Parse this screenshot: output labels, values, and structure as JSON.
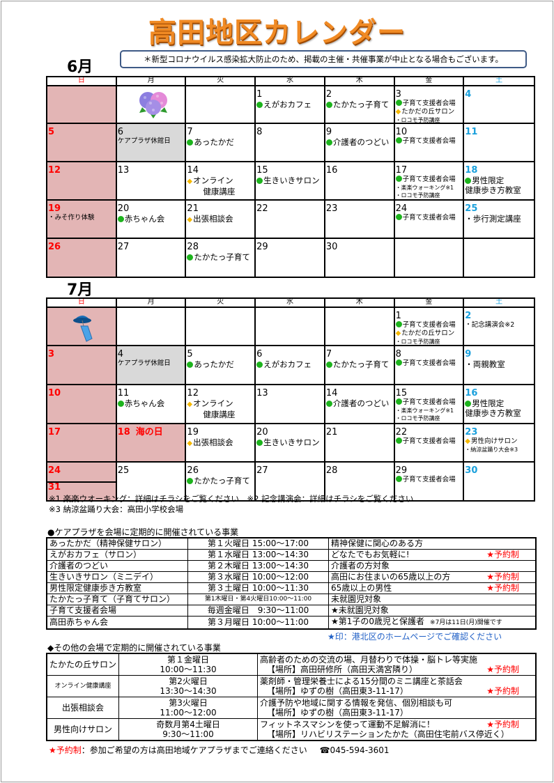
{
  "title": "高田地区カレンダー",
  "notice": "＊新型コロナウイルス感染拡大防止のため、掲載の主催・共催事業が中止となる場合もございます。",
  "weekdays": [
    "日",
    "月",
    "火",
    "水",
    "木",
    "金",
    "土"
  ],
  "colors": {
    "sunday": "#ff0000",
    "saturday": "#1aa0dc",
    "sunday_bg": "#e3b5b5",
    "closed_bg": "#d9d9d9",
    "green_mark": "#1db31d",
    "diamond_mark": "#f5b800",
    "title": "#f08a24"
  },
  "calendars": [
    {
      "month": "6月",
      "weeks": [
        [
          {
            "type": "sun",
            "icon": "hydrangea"
          },
          {
            "icon": "hydrangea-icon"
          },
          {},
          {
            "day": "1",
            "items": [
              {
                "m": "green",
                "t": "えがおカフェ"
              }
            ]
          },
          {
            "day": "2",
            "items": [
              {
                "m": "green",
                "t": "たかたっ子育て"
              }
            ]
          },
          {
            "day": "3",
            "items": [
              {
                "m": "green",
                "t": "子育て支援者会場",
                "s": "sm"
              },
              {
                "m": "diamond",
                "t": "たかだの丘サロン",
                "s": "sm"
              },
              {
                "m": "dot",
                "t": "・ロコモ予防講座",
                "s": "xs"
              }
            ]
          },
          {
            "day": "4",
            "type": "sat"
          }
        ],
        [
          {
            "day": "5",
            "type": "sun"
          },
          {
            "day": "6",
            "type": "closed",
            "items": [
              {
                "t": "ケアプラザ休館日",
                "s": "sm"
              }
            ]
          },
          {
            "day": "7",
            "items": [
              {
                "m": "green",
                "t": "あったかだ"
              }
            ]
          },
          {
            "day": "8"
          },
          {
            "day": "9",
            "items": [
              {
                "m": "green",
                "t": "介護者のつどい"
              }
            ]
          },
          {
            "day": "10",
            "items": [
              {
                "m": "green",
                "t": "子育て支援者会場",
                "s": "sm"
              }
            ]
          },
          {
            "day": "11",
            "type": "sat"
          }
        ],
        [
          {
            "day": "12",
            "type": "sun"
          },
          {
            "day": "13"
          },
          {
            "day": "14",
            "items": [
              {
                "m": "diamond",
                "t": "オンライン"
              },
              {
                "t": "　　健康講座"
              }
            ]
          },
          {
            "day": "15",
            "items": [
              {
                "m": "green",
                "t": "生きいきサロン"
              }
            ]
          },
          {
            "day": "16"
          },
          {
            "day": "17",
            "items": [
              {
                "m": "green",
                "t": "子育て支援者会場",
                "s": "sm"
              },
              {
                "t": "・楽楽ウォーキング※1",
                "s": "xs"
              },
              {
                "t": "・ロコモ予防講座",
                "s": "xs"
              }
            ]
          },
          {
            "day": "18",
            "type": "sat",
            "items": [
              {
                "m": "green",
                "t": "男性限定"
              },
              {
                "t": " 健康歩き方教室"
              }
            ]
          }
        ],
        [
          {
            "day": "19",
            "type": "sun",
            "items": [
              {
                "t": "・みそ作り体験",
                "s": "sm"
              }
            ]
          },
          {
            "day": "20",
            "items": [
              {
                "m": "green",
                "t": "赤ちゃん会"
              }
            ]
          },
          {
            "day": "21",
            "items": [
              {
                "m": "diamond",
                "t": "出張相談会"
              }
            ]
          },
          {
            "day": "22"
          },
          {
            "day": "23"
          },
          {
            "day": "24",
            "items": [
              {
                "m": "green",
                "t": "子育て支援者会場",
                "s": "sm"
              }
            ]
          },
          {
            "day": "25",
            "type": "sat",
            "items": [
              {
                "t": "・歩行測定講座"
              }
            ]
          }
        ],
        [
          {
            "day": "26",
            "type": "sun"
          },
          {
            "day": "27"
          },
          {
            "day": "28",
            "items": [
              {
                "m": "green",
                "t": "たかたっ子育て"
              }
            ]
          },
          {
            "day": "29"
          },
          {
            "day": "30"
          },
          {},
          {}
        ]
      ]
    },
    {
      "month": "7月",
      "weeks": [
        [
          {
            "type": "sun",
            "icon": "wind-chime-icon"
          },
          {},
          {},
          {},
          {},
          {
            "day": "1",
            "items": [
              {
                "m": "green",
                "t": "子育て支援者会場",
                "s": "sm"
              },
              {
                "m": "diamond",
                "t": "たかだの丘サロン",
                "s": "sm"
              },
              {
                "t": "・ロコモ予防講座",
                "s": "xs"
              }
            ]
          },
          {
            "day": "2",
            "type": "sat",
            "items": [
              {
                "t": "・記念講演会※2",
                "s": "sm"
              }
            ]
          }
        ],
        [
          {
            "day": "3",
            "type": "sun"
          },
          {
            "day": "4",
            "type": "closed",
            "items": [
              {
                "t": "ケアプラザ休館日",
                "s": "sm"
              }
            ]
          },
          {
            "day": "5",
            "items": [
              {
                "m": "green",
                "t": "あったかだ"
              }
            ]
          },
          {
            "day": "6",
            "items": [
              {
                "m": "green",
                "t": "えがおカフェ"
              }
            ]
          },
          {
            "day": "7",
            "items": [
              {
                "m": "green",
                "t": "たかたっ子育て"
              }
            ]
          },
          {
            "day": "8",
            "items": [
              {
                "m": "green",
                "t": "子育て支援者会場",
                "s": "sm"
              }
            ]
          },
          {
            "day": "9",
            "type": "sat",
            "items": [
              {
                "t": "・両親教室"
              }
            ]
          }
        ],
        [
          {
            "day": "10",
            "type": "sun"
          },
          {
            "day": "11",
            "items": [
              {
                "m": "green",
                "t": "赤ちゃん会"
              }
            ]
          },
          {
            "day": "12",
            "items": [
              {
                "m": "diamond",
                "t": "オンライン"
              },
              {
                "t": "　　健康講座"
              }
            ]
          },
          {
            "day": "13"
          },
          {
            "day": "14",
            "items": [
              {
                "m": "green",
                "t": "介護者のつどい"
              }
            ]
          },
          {
            "day": "15",
            "items": [
              {
                "m": "green",
                "t": "子育て支援者会場",
                "s": "sm"
              },
              {
                "t": "・楽楽ウォーキング※1",
                "s": "xs"
              },
              {
                "t": "・ロコモ予防講座",
                "s": "xs"
              }
            ]
          },
          {
            "day": "16",
            "type": "sat",
            "items": [
              {
                "m": "green",
                "t": "男性限定"
              },
              {
                "t": " 健康歩き方教室"
              }
            ]
          }
        ],
        [
          {
            "day": "17",
            "type": "sun"
          },
          {
            "day": "18",
            "type": "sun hol",
            "holiday": "海の日"
          },
          {
            "day": "19",
            "items": [
              {
                "m": "diamond",
                "t": "出張相談会"
              }
            ]
          },
          {
            "day": "20",
            "items": [
              {
                "m": "green",
                "t": "生きいきサロン"
              }
            ]
          },
          {
            "day": "21"
          },
          {
            "day": "22",
            "items": [
              {
                "m": "green",
                "t": "子育て支援者会場",
                "s": "sm"
              }
            ]
          },
          {
            "day": "23",
            "type": "sat",
            "items": [
              {
                "m": "diamond",
                "t": "男性向けサロン",
                "s": "sm"
              },
              {
                "t": "・納涼盆踊り大会※3",
                "s": "xs"
              }
            ]
          }
        ],
        [
          {
            "day": "24",
            "type": "sun",
            "split": "31"
          },
          {
            "day": "25"
          },
          {
            "day": "26",
            "items": [
              {
                "m": "green",
                "t": "たかたっ子育て"
              }
            ]
          },
          {
            "day": "27"
          },
          {
            "day": "28"
          },
          {
            "day": "29",
            "items": [
              {
                "m": "green",
                "t": "子育て支援者会場",
                "s": "sm"
              }
            ]
          },
          {
            "day": "30",
            "type": "sat"
          }
        ]
      ]
    }
  ],
  "footnotes": [
    "※1 楽楽ウオーキング：詳細はチラシをご覧ください　※2 記念講演会：詳細はチラシをご覧ください",
    "※3 納涼盆踊り大会：高田小学校会場"
  ],
  "careplaza": {
    "heading": "●ケアプラザを会場に定期的に開催されている事業",
    "rows": [
      {
        "name": "あったかだ（精神保健サロン）",
        "when": "第１火曜日 15:00～17:00",
        "note": "精神保健に関心のある方",
        "res": ""
      },
      {
        "name": "えがおカフェ（サロン）",
        "when": "第１水曜日 13:00～14:30",
        "note": "どなたでもお気軽に!",
        "res": "★予約制"
      },
      {
        "name": "介護者のつどい",
        "when": "第２木曜日 13:00～14:30",
        "note": "介護者の方対象",
        "res": ""
      },
      {
        "name": "生きいきサロン（ミニデイ）",
        "when": "第３水曜日 10:00～12:00",
        "note": "高田にお住まいの65歳以上の方",
        "res": "★予約制"
      },
      {
        "name": "男性限定健康歩き方教室",
        "when": "第３土曜日 10:00～11:30",
        "note": "65歳以上の男性",
        "res": "★予約制"
      },
      {
        "name": "たかたっ子育て（子育てサロン）",
        "when": "第1木曜日・第4火曜日10:00～11:00",
        "note": "未就園児対象",
        "res": ""
      },
      {
        "name": "子育て支援者会場",
        "when": "毎週金曜日　9:30～11:00",
        "note": "★未就園児対象",
        "res": ""
      },
      {
        "name": "高田赤ちゃん会",
        "when": "第３月曜日 10:00～11:00",
        "note": "★第1子の0歳児と保護者",
        "extra": "※7月は11日(月)開催です",
        "res": ""
      }
    ],
    "star_note": "★印：港北区のホームページでご確認ください"
  },
  "other": {
    "heading": "◆その他の会場で定期的に開催されている事業",
    "rows": [
      {
        "name": "たかたの丘サロン",
        "when1": "第１金曜日",
        "when2": "10:00～11:30",
        "desc": "高齢者のための交流の場、月替わりで体操・脳トレ等実施",
        "place": "【場所】高田研修所（高田天満宮隣り）",
        "res": "★予約制"
      },
      {
        "name": "オンライン健康講座",
        "when1": "第2火曜日",
        "when2": "13:30～14:30",
        "desc": "薬剤師・管理栄養士による15分間のミニ講座と茶話会",
        "place": "【場所】ゆずの樹（高田東3-11-17）",
        "res": "★予約制"
      },
      {
        "name": "出張相談会",
        "when1": "第3火曜日",
        "when2": "11:00～12:00",
        "desc": "介護予防や地域に関する情報を発信、個別相談も可",
        "place": "【場所】ゆずの樹（高田東3-11-17）",
        "res": ""
      },
      {
        "name": "男性向けサロン",
        "when1": "奇数月第4土曜日",
        "when2": "9:30～11:00",
        "desc": "フィットネスマシンを使って運動不足解消に！",
        "place": "【場所】リハビリステーションたかた（高田住宅前バス停近く）",
        "res": "★予約制"
      }
    ]
  },
  "footer": {
    "label": "★予約制",
    "text": "：参加ご希望の方は高田地域ケアプラザまでご連絡ください",
    "phone": "☎045-594-3601"
  }
}
